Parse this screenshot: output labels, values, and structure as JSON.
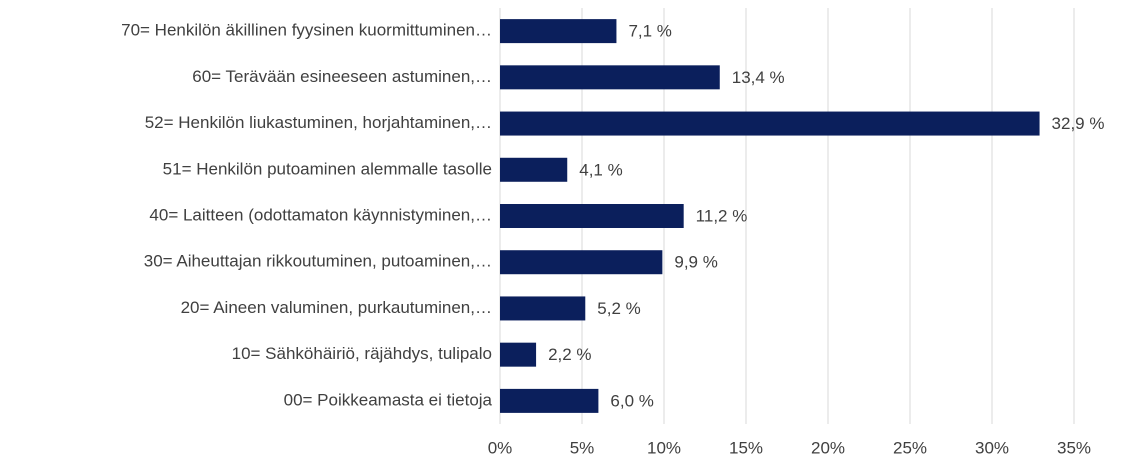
{
  "chart_data": {
    "type": "barh",
    "categories": [
      "70= Henkilön äkillinen fyysinen kuormittuminen…",
      "60= Terävään esineeseen astuminen,…",
      "52= Henkilön liukastuminen, horjahtaminen,…",
      "51= Henkilön putoaminen alemmalle tasolle",
      "40= Laitteen (odottamaton käynnistyminen,…",
      "30= Aiheuttajan rikkoutuminen, putoaminen,…",
      "20= Aineen valuminen, purkautuminen,…",
      "10= Sähköhäiriö, räjähdys, tulipalo",
      "00= Poikkeamasta ei tietoja"
    ],
    "values": [
      7.1,
      13.4,
      32.9,
      4.1,
      11.2,
      9.9,
      5.2,
      2.2,
      6.0
    ],
    "value_labels": [
      "7,1 %",
      "13,4 %",
      "32,9 %",
      "4,1 %",
      "11,2 %",
      "9,9 %",
      "5,2 %",
      "2,2 %",
      "6,0 %"
    ],
    "color": "#0b1f5c",
    "xlim": [
      0,
      35
    ],
    "xticks": [
      {
        "value": 0,
        "label": "0%"
      },
      {
        "value": 5,
        "label": "5%"
      },
      {
        "value": 10,
        "label": "10%"
      },
      {
        "value": 15,
        "label": "15%"
      },
      {
        "value": 20,
        "label": "20%"
      },
      {
        "value": 25,
        "label": "25%"
      },
      {
        "value": 30,
        "label": "30%"
      },
      {
        "value": 35,
        "label": "35%"
      }
    ],
    "grid": true
  }
}
